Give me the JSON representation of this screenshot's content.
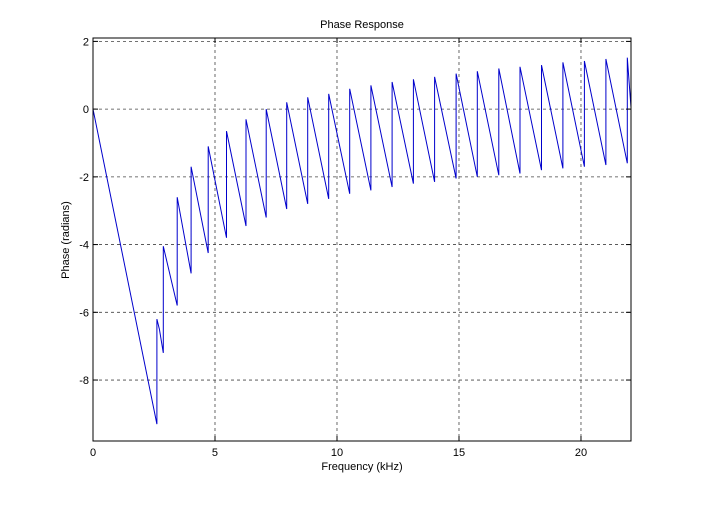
{
  "chart_data": {
    "type": "line",
    "title": "Phase Response",
    "xlabel": "Frequency (kHz)",
    "ylabel": "Phase (radians)",
    "xlim": [
      0,
      22.05
    ],
    "ylim": [
      -9.8,
      2.1
    ],
    "xticks": [
      0,
      5,
      10,
      15,
      20
    ],
    "yticks": [
      -8,
      -6,
      -4,
      -2,
      0,
      2
    ],
    "grid": true,
    "line_color": "#0000cc",
    "series": [
      {
        "x": [
          0,
          2.62,
          2.62,
          2.72,
          2.88,
          2.88,
          3.45,
          3.45,
          4.02,
          4.02,
          4.72,
          4.72,
          5.47,
          5.47,
          6.27,
          6.27,
          7.1,
          7.1,
          7.94,
          7.94,
          8.8,
          8.8,
          9.66,
          9.66,
          10.52,
          10.52,
          11.39,
          11.39,
          12.26,
          12.26,
          13.13,
          13.13,
          14.0,
          14.0,
          14.88,
          14.88,
          15.75,
          15.75,
          16.63,
          16.63,
          17.5,
          17.5,
          18.38,
          18.38,
          19.26,
          19.26,
          20.14,
          20.14,
          21.02,
          21.02,
          21.9,
          21.9,
          22.05
        ],
        "y": [
          0,
          -9.3,
          -6.2,
          -6.5,
          -7.2,
          -4.05,
          -5.8,
          -2.6,
          -4.85,
          -1.7,
          -4.25,
          -1.1,
          -3.8,
          -0.65,
          -3.45,
          -0.3,
          -3.2,
          0.0,
          -2.95,
          0.2,
          -2.8,
          0.35,
          -2.65,
          0.45,
          -2.5,
          0.6,
          -2.4,
          0.7,
          -2.3,
          0.8,
          -2.2,
          0.88,
          -2.15,
          0.95,
          -2.05,
          1.05,
          -2.0,
          1.12,
          -1.95,
          1.2,
          -1.9,
          1.25,
          -1.8,
          1.3,
          -1.75,
          1.38,
          -1.7,
          1.42,
          -1.65,
          1.48,
          -1.6,
          1.52,
          0.05
        ]
      }
    ]
  }
}
